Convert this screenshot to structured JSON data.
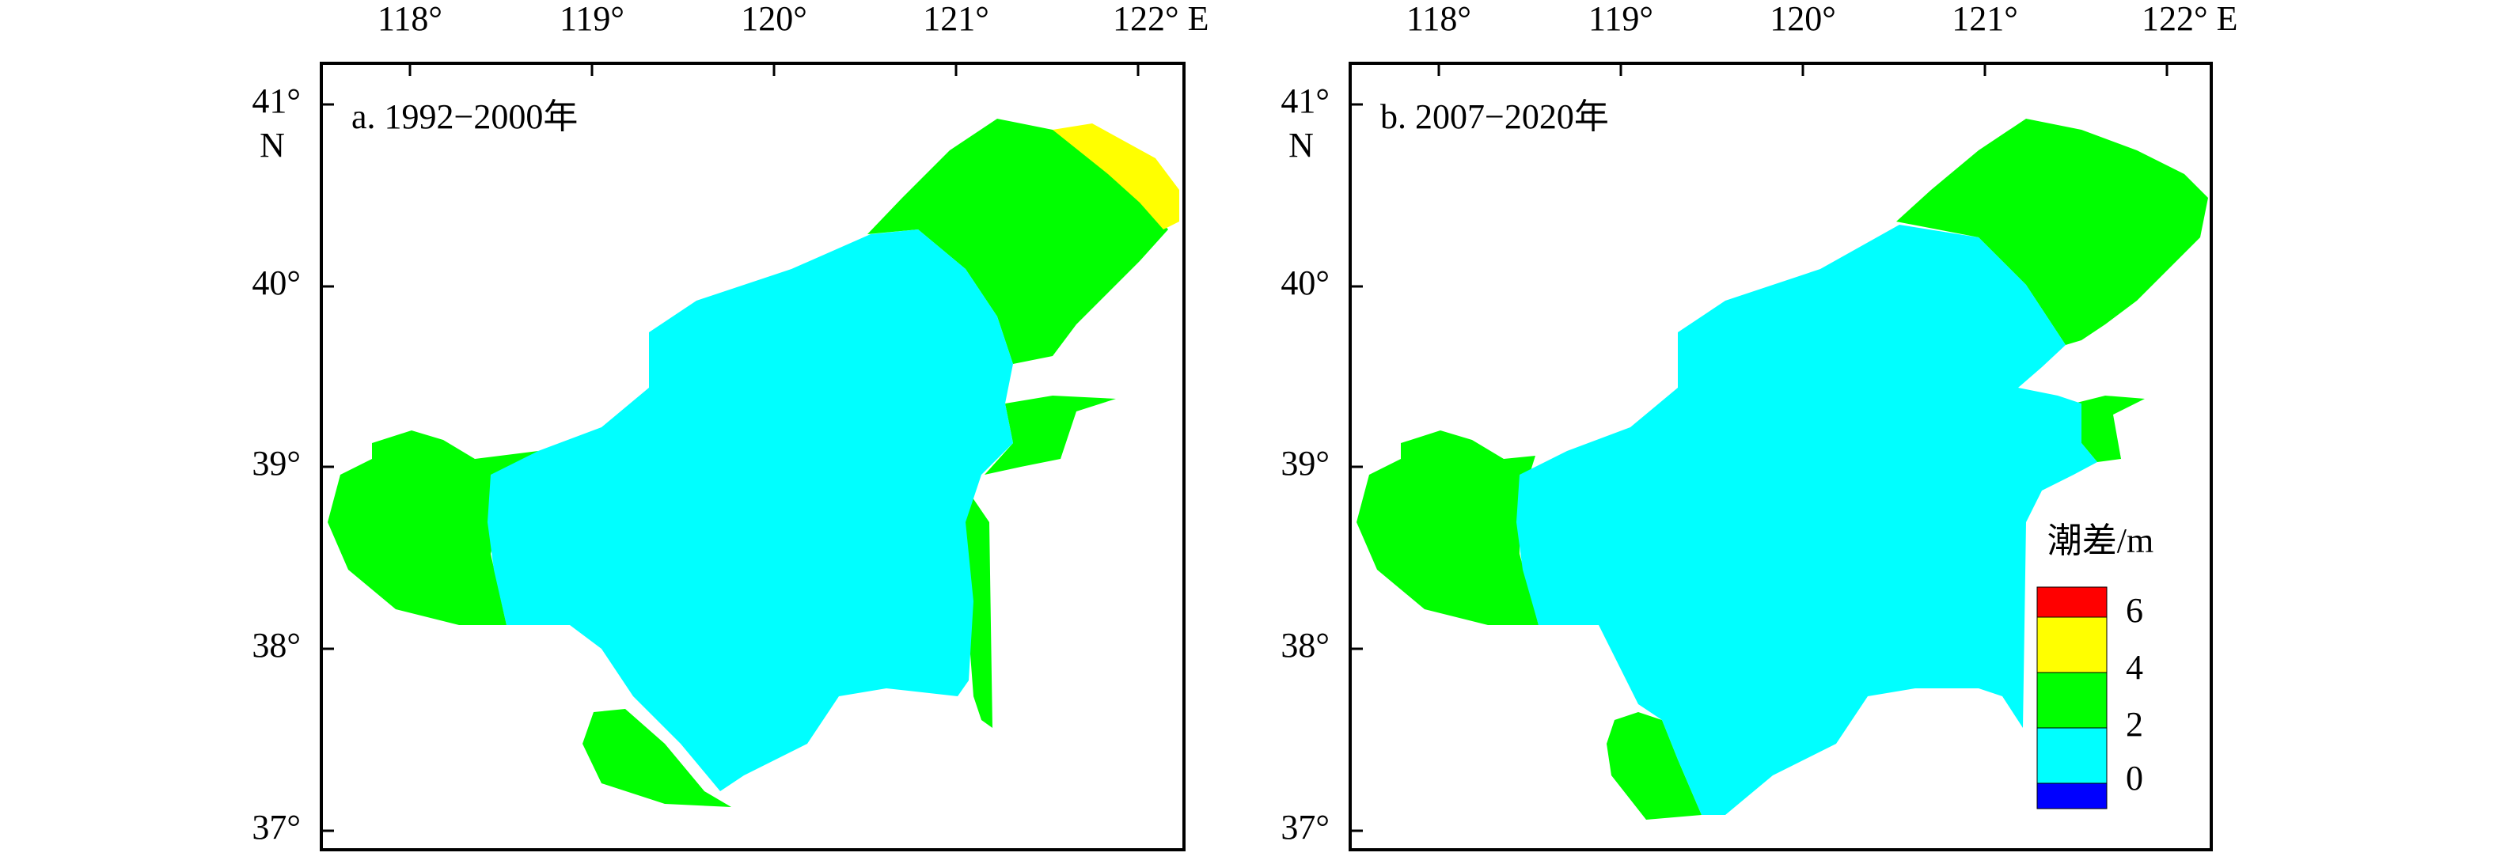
{
  "panels": [
    {
      "title": "a. 1992−2000年",
      "x_labels": [
        "118°",
        "119°",
        "120°",
        "121°",
        "122° E"
      ],
      "y_labels": [
        "41°",
        "40°",
        "39°",
        "38°",
        "37°"
      ],
      "north_label": "N"
    },
    {
      "title": "b. 2007−2020年",
      "x_labels": [
        "118°",
        "119°",
        "120°",
        "121°",
        "122° E"
      ],
      "y_labels": [
        "41°",
        "40°",
        "39°",
        "38°",
        "37°"
      ],
      "north_label": "N"
    }
  ],
  "legend": {
    "title": "潮差/m",
    "labels": [
      "6",
      "4",
      "2",
      "0"
    ]
  }
}
